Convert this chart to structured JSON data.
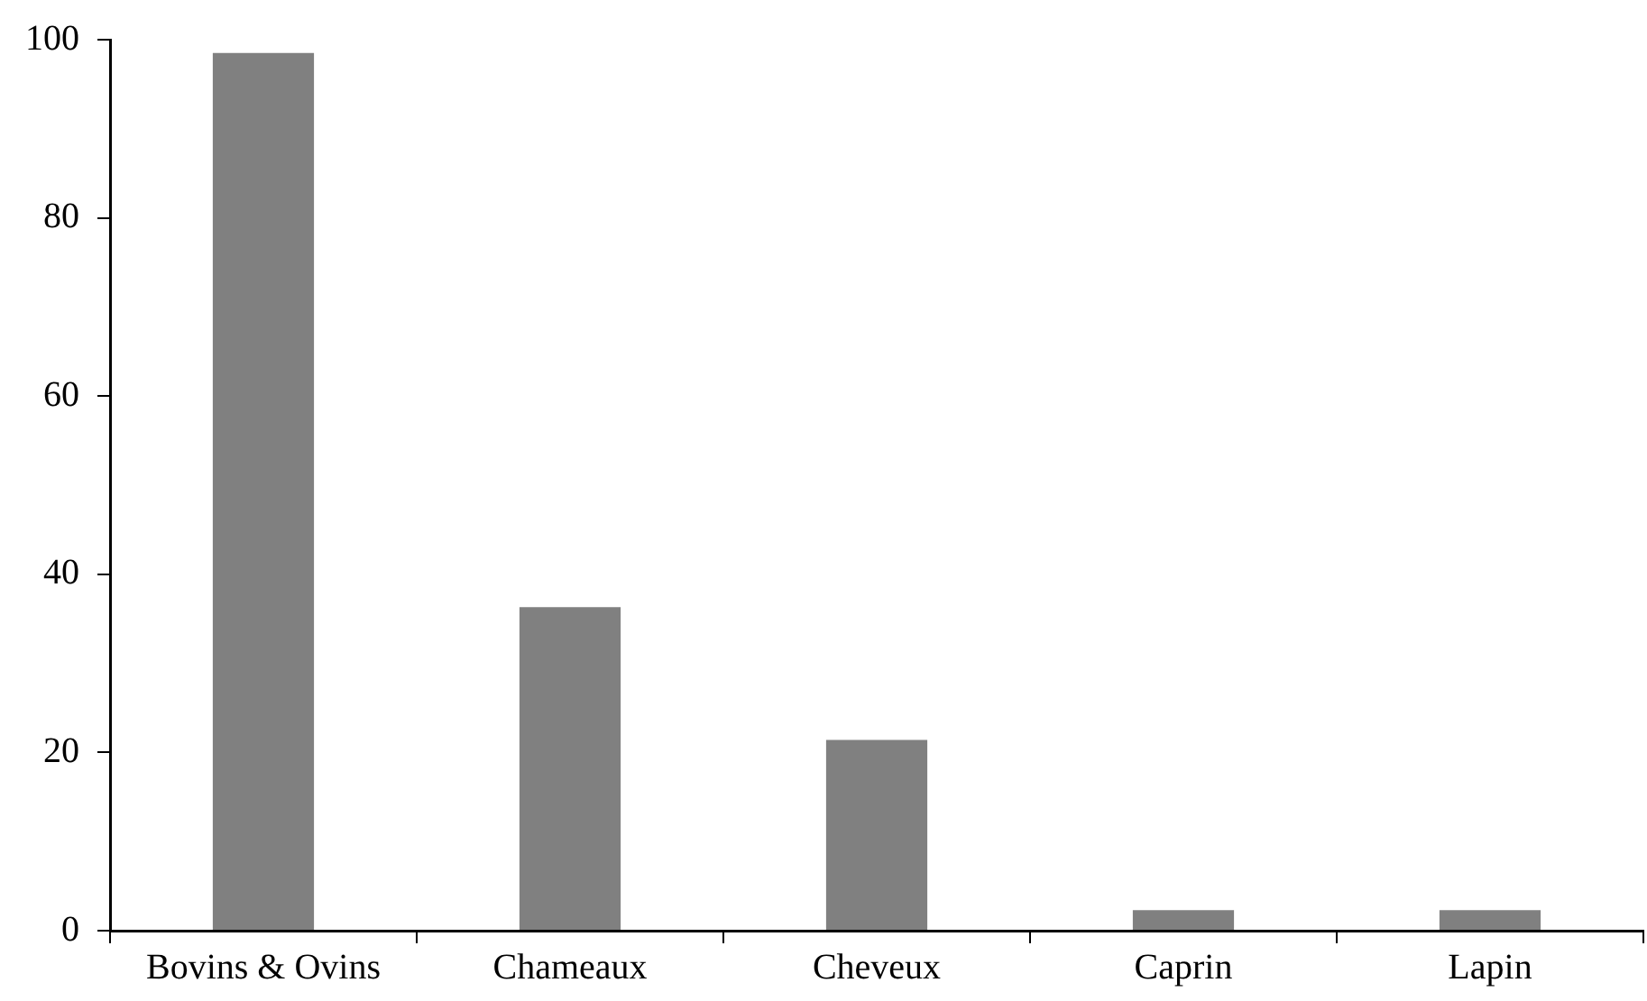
{
  "chart_data": {
    "type": "bar",
    "categories": [
      "Bovins & Ovins",
      "Chameaux",
      "Cheveux",
      "Caprin",
      "Lapin"
    ],
    "values": [
      98.5,
      36.3,
      21.4,
      2.3,
      2.3
    ],
    "color": "#808080",
    "ylim": [
      0,
      100
    ],
    "yticks": [
      0,
      20,
      40,
      60,
      80,
      100
    ],
    "grid": false,
    "legend": false
  }
}
